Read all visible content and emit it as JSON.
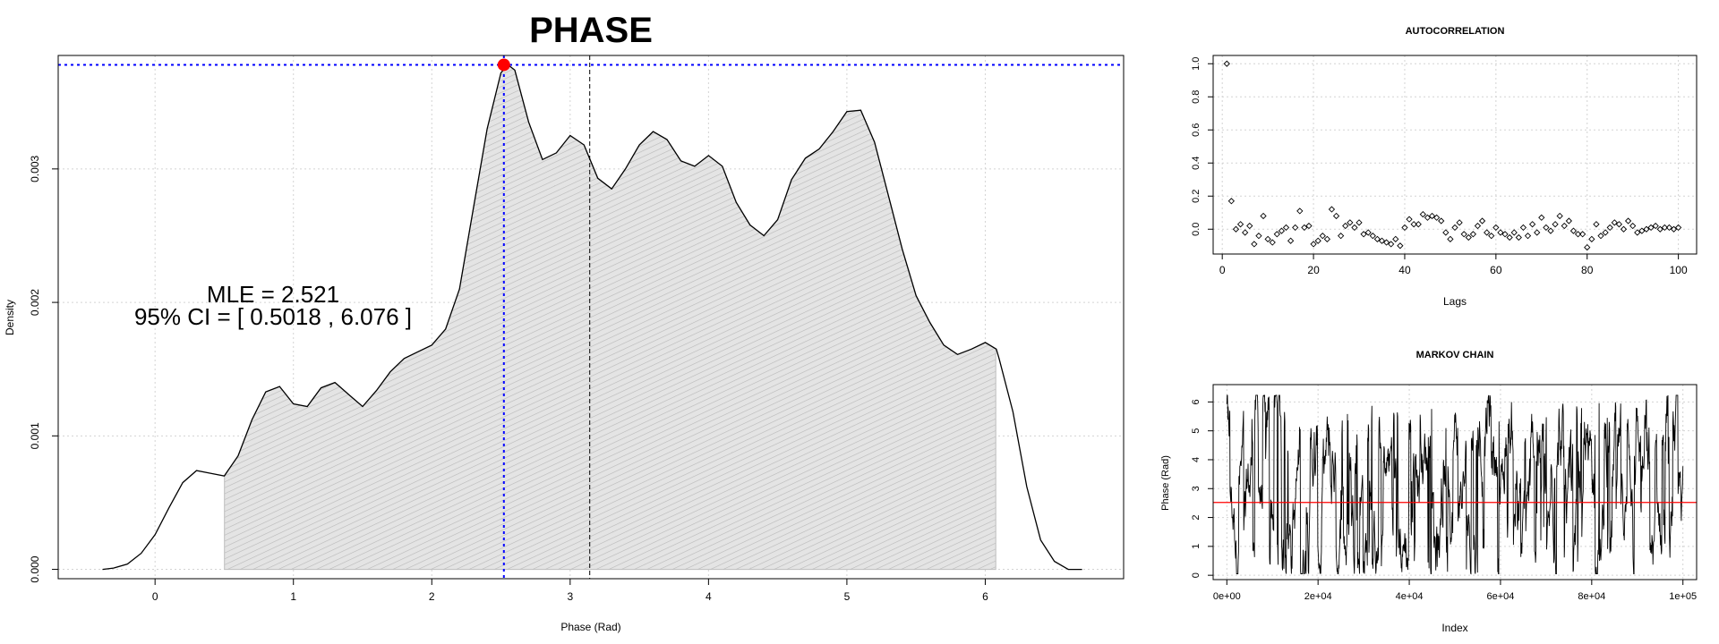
{
  "chart_data": [
    {
      "type": "area",
      "title": "PHASE",
      "xlabel": "Phase (Rad)",
      "ylabel": "Density",
      "xlim": [
        -0.7,
        7.0
      ],
      "ylim": [
        -7e-05,
        0.00385
      ],
      "xticks": [
        0,
        1,
        2,
        3,
        4,
        5,
        6
      ],
      "yticks": [
        0.0,
        0.001,
        0.002,
        0.003
      ],
      "ytick_labels": [
        "0.000",
        "0.001",
        "0.002",
        "0.003"
      ],
      "grid": true,
      "density_curve": {
        "x": [
          -0.38,
          -0.3,
          -0.2,
          -0.1,
          0.0,
          0.1,
          0.2,
          0.3,
          0.4,
          0.5,
          0.6,
          0.7,
          0.8,
          0.9,
          1.0,
          1.1,
          1.2,
          1.3,
          1.4,
          1.5,
          1.6,
          1.7,
          1.8,
          1.9,
          2.0,
          2.1,
          2.2,
          2.3,
          2.4,
          2.5,
          2.55,
          2.6,
          2.7,
          2.8,
          2.9,
          3.0,
          3.1,
          3.2,
          3.3,
          3.4,
          3.5,
          3.6,
          3.7,
          3.8,
          3.9,
          4.0,
          4.1,
          4.2,
          4.3,
          4.4,
          4.5,
          4.6,
          4.7,
          4.8,
          4.9,
          5.0,
          5.1,
          5.2,
          5.3,
          5.4,
          5.5,
          5.6,
          5.7,
          5.8,
          5.9,
          6.0,
          6.08,
          6.1,
          6.2,
          6.3,
          6.4,
          6.5,
          6.6,
          6.7
        ],
        "y": [
          0.0,
          1e-05,
          4e-05,
          0.00012,
          0.00026,
          0.00046,
          0.00065,
          0.00074,
          0.00072,
          0.0007,
          0.00085,
          0.00112,
          0.00133,
          0.00137,
          0.00124,
          0.00122,
          0.00136,
          0.0014,
          0.00131,
          0.00122,
          0.00134,
          0.00148,
          0.00158,
          0.00163,
          0.00168,
          0.0018,
          0.0021,
          0.0027,
          0.0033,
          0.00372,
          0.00378,
          0.00374,
          0.00335,
          0.00307,
          0.00312,
          0.00325,
          0.00318,
          0.00293,
          0.00285,
          0.003,
          0.00318,
          0.00328,
          0.00322,
          0.00306,
          0.00302,
          0.0031,
          0.00302,
          0.00275,
          0.00258,
          0.0025,
          0.00262,
          0.00292,
          0.00308,
          0.00315,
          0.00328,
          0.00343,
          0.00344,
          0.0032,
          0.0028,
          0.0024,
          0.00205,
          0.00185,
          0.00168,
          0.00161,
          0.00165,
          0.0017,
          0.00165,
          0.00158,
          0.00118,
          0.00062,
          0.00022,
          6e-05,
          0.0,
          0.0
        ]
      },
      "ci": [
        0.5018,
        6.076
      ],
      "mle": 2.521,
      "mle_density": 0.00378,
      "reference_line_x": 3.1416,
      "annotation_line1": "MLE =  2.521",
      "annotation_line2": "95% CI  = [ 0.5018 , 6.076 ]",
      "colors": {
        "fill": "#c8c8c8",
        "mle_lines": "#0000ff",
        "mle_point": "#ff0000",
        "curve": "#000000"
      }
    },
    {
      "type": "scatter",
      "title": "AUTOCORRELATION",
      "xlabel": "Lags",
      "ylabel": "",
      "xlim": [
        -2,
        104
      ],
      "ylim": [
        -0.15,
        1.05
      ],
      "xticks": [
        0,
        20,
        40,
        60,
        80,
        100
      ],
      "yticks": [
        0.0,
        0.2,
        0.4,
        0.6,
        0.8,
        1.0
      ],
      "ytick_labels": [
        "0.0",
        "0.2",
        "0.4",
        "0.6",
        "0.8",
        "1.0"
      ],
      "grid": true,
      "x": [
        1,
        2,
        3,
        4,
        5,
        6,
        7,
        8,
        9,
        10,
        11,
        12,
        13,
        14,
        15,
        16,
        17,
        18,
        19,
        20,
        21,
        22,
        23,
        24,
        25,
        26,
        27,
        28,
        29,
        30,
        31,
        32,
        33,
        34,
        35,
        36,
        37,
        38,
        39,
        40,
        41,
        42,
        43,
        44,
        45,
        46,
        47,
        48,
        49,
        50,
        51,
        52,
        53,
        54,
        55,
        56,
        57,
        58,
        59,
        60,
        61,
        62,
        63,
        64,
        65,
        66,
        67,
        68,
        69,
        70,
        71,
        72,
        73,
        74,
        75,
        76,
        77,
        78,
        79,
        80,
        81,
        82,
        83,
        84,
        85,
        86,
        87,
        88,
        89,
        90,
        91,
        92,
        93,
        94,
        95,
        96,
        97,
        98,
        99,
        100
      ],
      "values": [
        1.0,
        0.17,
        0.0,
        0.03,
        -0.02,
        0.02,
        -0.09,
        -0.04,
        0.08,
        -0.06,
        -0.08,
        -0.03,
        -0.01,
        0.01,
        -0.07,
        0.01,
        0.11,
        0.01,
        0.02,
        -0.09,
        -0.07,
        -0.04,
        -0.06,
        0.12,
        0.08,
        -0.04,
        0.02,
        0.04,
        0.01,
        0.04,
        -0.03,
        -0.02,
        -0.04,
        -0.06,
        -0.07,
        -0.08,
        -0.09,
        -0.06,
        -0.1,
        0.01,
        0.06,
        0.03,
        0.03,
        0.09,
        0.07,
        0.08,
        0.07,
        0.05,
        -0.02,
        -0.06,
        0.01,
        0.04,
        -0.03,
        -0.05,
        -0.03,
        0.02,
        0.05,
        -0.02,
        -0.04,
        0.01,
        -0.02,
        -0.03,
        -0.05,
        -0.02,
        -0.05,
        0.01,
        -0.04,
        0.03,
        -0.02,
        0.07,
        0.01,
        -0.01,
        0.03,
        0.08,
        0.02,
        0.05,
        -0.01,
        -0.03,
        -0.03,
        -0.11,
        -0.06,
        0.03,
        -0.04,
        -0.02,
        0.01,
        0.04,
        0.03,
        0.0,
        0.05,
        0.02,
        -0.02,
        -0.01,
        0.0,
        0.01,
        0.02,
        0.0,
        0.01,
        0.01,
        0.0,
        0.01
      ]
    },
    {
      "type": "line",
      "title": "MARKOV CHAIN",
      "xlabel": "Index",
      "ylabel": "Phase (Rad)",
      "xlim": [
        -3000,
        103000
      ],
      "ylim": [
        -0.15,
        6.6
      ],
      "xticks": [
        0,
        20000,
        40000,
        60000,
        80000,
        100000
      ],
      "xtick_labels": [
        "0e+00",
        "2e+04",
        "4e+04",
        "6e+04",
        "8e+04",
        "1e+05"
      ],
      "yticks": [
        0,
        1,
        2,
        3,
        4,
        5,
        6
      ],
      "ytick_labels": [
        "0",
        "1",
        "2",
        "3",
        "4",
        "5",
        "6"
      ],
      "grid": true,
      "series": [
        {
          "values_note_hidden": "",
          "trace_range": [
            0,
            6.283
          ],
          "reference_value": 2.521
        }
      ],
      "colors": {
        "trace": "#000000",
        "reference": "#ff0000"
      }
    }
  ]
}
